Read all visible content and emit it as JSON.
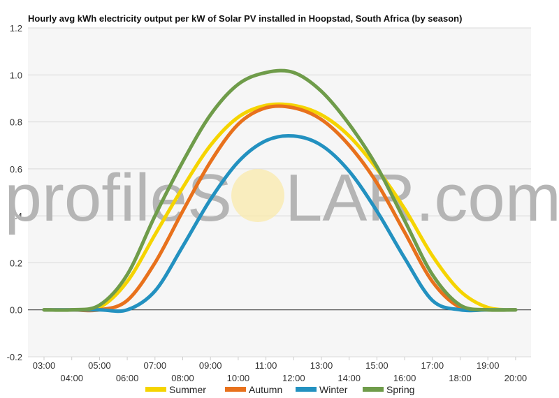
{
  "title": "Hourly avg kWh electricity output per kW of Solar PV installed in Hoopstad, South Africa (by season)",
  "watermark": {
    "left": "profileS",
    "right": "LAR.com"
  },
  "colors": {
    "Summer": "#f5d400",
    "Autumn": "#e8711c",
    "Winter": "#2391c0",
    "Spring": "#6f9c4a"
  },
  "chart_data": {
    "type": "line",
    "title": "Hourly avg kWh electricity output per kW of Solar PV installed in Hoopstad, South Africa (by season)",
    "xlabel": "",
    "ylabel": "",
    "ylim": [
      -0.2,
      1.2
    ],
    "yticks": [
      -0.2,
      0.0,
      0.2,
      0.4,
      0.6,
      0.8,
      1.0,
      1.2
    ],
    "ytick_labels": [
      "-0.2",
      "0.0",
      "0.2",
      "0.4",
      "0.6",
      "0.8",
      "1.0",
      "1.2"
    ],
    "categories": [
      "03:00",
      "04:00",
      "05:00",
      "06:00",
      "07:00",
      "08:00",
      "09:00",
      "10:00",
      "11:00",
      "12:00",
      "13:00",
      "14:00",
      "15:00",
      "16:00",
      "17:00",
      "18:00",
      "19:00",
      "20:00"
    ],
    "grid": true,
    "legend": "bottom",
    "series": [
      {
        "name": "Summer",
        "values": [
          0.0,
          0.0,
          0.01,
          0.12,
          0.32,
          0.52,
          0.7,
          0.82,
          0.87,
          0.87,
          0.83,
          0.74,
          0.6,
          0.43,
          0.23,
          0.08,
          0.01,
          0.0
        ]
      },
      {
        "name": "Autumn",
        "values": [
          0.0,
          0.0,
          0.0,
          0.04,
          0.2,
          0.42,
          0.63,
          0.79,
          0.86,
          0.86,
          0.81,
          0.7,
          0.54,
          0.33,
          0.12,
          0.01,
          0.0,
          0.0
        ]
      },
      {
        "name": "Winter",
        "values": [
          0.0,
          0.0,
          0.0,
          0.0,
          0.08,
          0.27,
          0.47,
          0.63,
          0.72,
          0.74,
          0.7,
          0.59,
          0.42,
          0.22,
          0.04,
          0.0,
          0.0,
          0.0
        ]
      },
      {
        "name": "Spring",
        "values": [
          0.0,
          0.0,
          0.02,
          0.15,
          0.4,
          0.63,
          0.83,
          0.96,
          1.01,
          1.01,
          0.93,
          0.79,
          0.61,
          0.38,
          0.15,
          0.02,
          0.0,
          0.0
        ]
      }
    ]
  }
}
